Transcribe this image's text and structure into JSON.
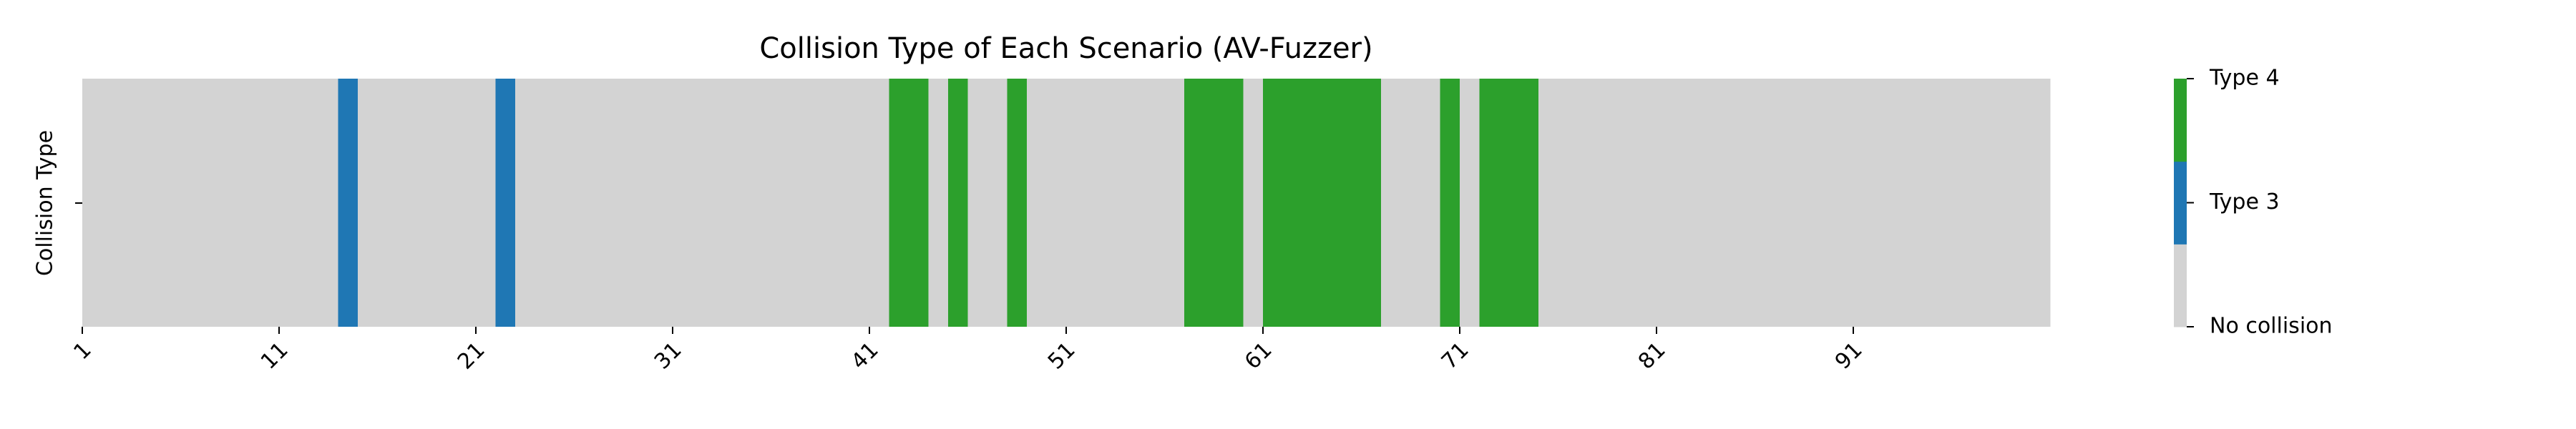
{
  "chart_data": {
    "type": "heatmap",
    "title": "Collision Type of Each Scenario (AV-Fuzzer)",
    "ylabel": "Collision Type",
    "values": [
      0,
      0,
      0,
      0,
      0,
      0,
      0,
      0,
      0,
      0,
      0,
      0,
      0,
      1,
      0,
      0,
      0,
      0,
      0,
      0,
      0,
      1,
      0,
      0,
      0,
      0,
      0,
      0,
      0,
      0,
      0,
      0,
      0,
      0,
      0,
      0,
      0,
      0,
      0,
      0,
      0,
      2,
      2,
      0,
      2,
      0,
      0,
      2,
      0,
      0,
      0,
      0,
      0,
      0,
      0,
      0,
      2,
      2,
      2,
      0,
      2,
      2,
      2,
      2,
      2,
      2,
      0,
      0,
      0,
      2,
      0,
      2,
      2,
      2,
      0,
      0,
      0,
      0,
      0,
      0,
      0,
      0,
      0,
      0,
      0,
      0,
      0,
      0,
      0,
      0,
      0,
      0,
      0,
      0,
      0,
      0,
      0,
      0,
      0,
      0
    ],
    "xlim": [
      1,
      101
    ],
    "xticks": [
      1,
      11,
      21,
      31,
      41,
      51,
      61,
      71,
      81,
      91
    ],
    "colors": [
      "#d3d3d3",
      "#1f77b4",
      "#2ca02c"
    ],
    "colorbar_lim": [
      0,
      2
    ],
    "colorbar_ticks": [
      {
        "value": 0,
        "label": "No collision"
      },
      {
        "value": 1,
        "label": "Type 3"
      },
      {
        "value": 2,
        "label": "Type 4"
      }
    ]
  }
}
